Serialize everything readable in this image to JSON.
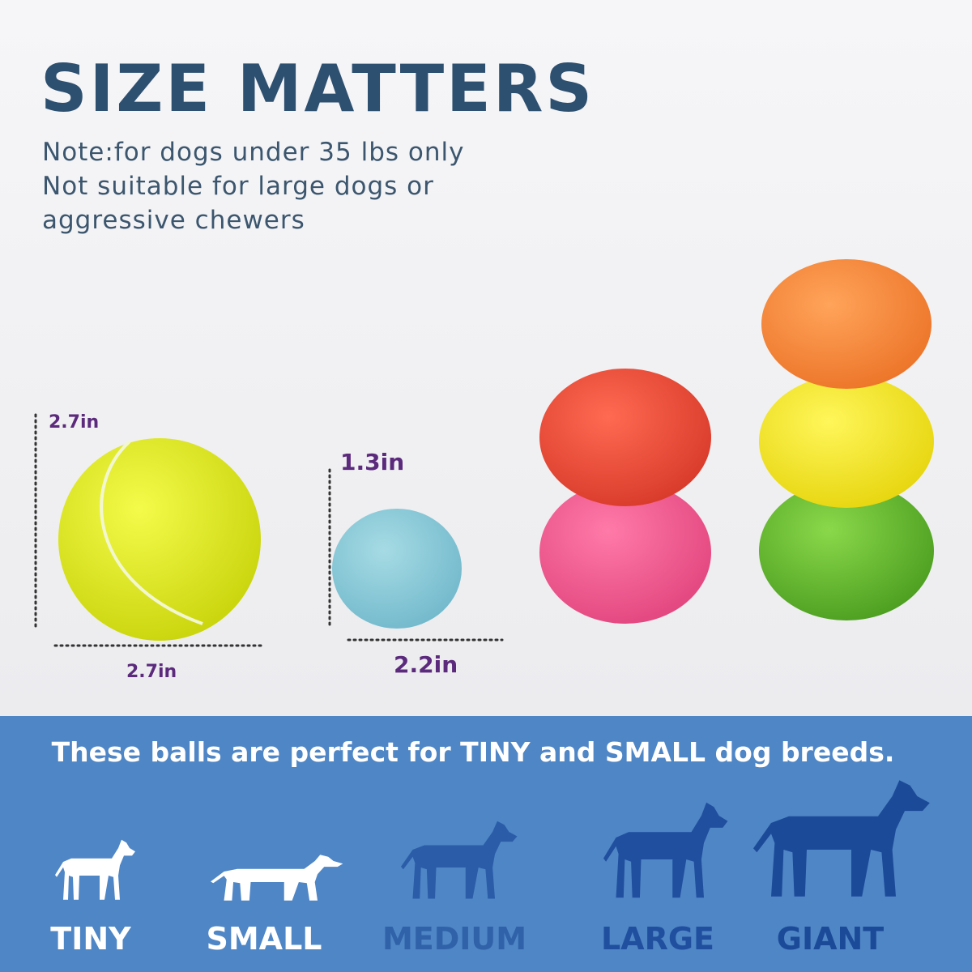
{
  "header": {
    "title": "SIZE MATTERS",
    "note": [
      "Note:for dogs under 35 lbs only",
      "Not suitable for large dogs or",
      "aggressive chewers"
    ]
  },
  "dimensions": {
    "tennis_height": "2.7in",
    "tennis_width": "2.7in",
    "ball_height": "1.3in",
    "ball_width": "2.2in"
  },
  "banner": {
    "text": "These balls are perfect for TINY and SMALL dog breeds.",
    "sizes": [
      "TINY",
      "SMALL",
      "MEDIUM",
      "LARGE",
      "GIANT"
    ]
  }
}
